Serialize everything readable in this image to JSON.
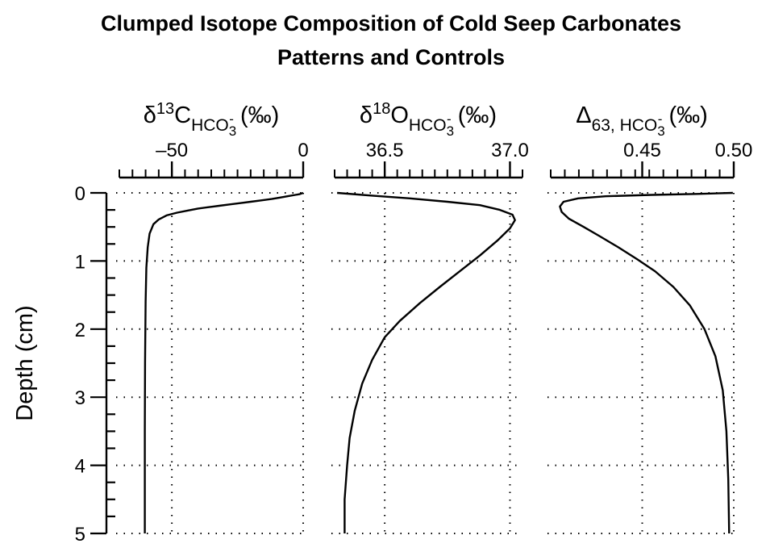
{
  "title_line1": "Clumped Isotope Composition of Cold Seep Carbonates",
  "title_line2": "Patterns and Controls",
  "y_axis_label": "Depth (cm)",
  "chart_data": [
    {
      "type": "line",
      "panel": "d13C",
      "xlabel_parts": {
        "symbol": "δ",
        "sup": "13",
        "base": "C",
        "sub": "HCO",
        "sub2": "3",
        "subsup": "-",
        "unit": "(‰)"
      },
      "xlim": [
        -70,
        0
      ],
      "xticks": [
        {
          "value": -50,
          "label": "–50"
        },
        {
          "value": 0,
          "label": "0"
        }
      ],
      "minor_step": 5,
      "ylim": [
        0,
        5
      ],
      "yticks": [
        0,
        1,
        2,
        3,
        4,
        5
      ],
      "grid": "dotted",
      "series": [
        {
          "x": [
            0,
            -1.5,
            -3,
            -6,
            -9,
            -12,
            -16,
            -20,
            -24,
            -28,
            -32,
            -36,
            -40,
            -44,
            -48,
            -52,
            -55,
            -57,
            -58.5,
            -59.2,
            -59.7,
            -60,
            -60.2,
            -60.3,
            -60.3
          ],
          "y": [
            0,
            0.02,
            0.03,
            0.05,
            0.07,
            0.09,
            0.11,
            0.13,
            0.15,
            0.17,
            0.19,
            0.21,
            0.23,
            0.26,
            0.29,
            0.33,
            0.39,
            0.46,
            0.6,
            0.8,
            1.1,
            1.6,
            2.5,
            3.5,
            5.0
          ]
        }
      ]
    },
    {
      "type": "line",
      "panel": "d18O",
      "xlabel_parts": {
        "symbol": "δ",
        "sup": "18",
        "base": "O",
        "sub": "HCO",
        "sub2": "3",
        "subsup": "-",
        "unit": "(‰)"
      },
      "xlim": [
        36.3,
        37.05
      ],
      "xticks": [
        {
          "value": 36.5,
          "label": "36.5"
        },
        {
          "value": 37.0,
          "label": "37.0"
        }
      ],
      "minor_step": 0.05,
      "ylim": [
        0,
        5
      ],
      "yticks": [
        0,
        1,
        2,
        3,
        4,
        5
      ],
      "grid": "dotted",
      "series": [
        {
          "x": [
            36.31,
            36.45,
            36.6,
            36.75,
            36.88,
            36.96,
            37.01,
            37.02,
            37.0,
            36.95,
            36.88,
            36.8,
            36.72,
            36.64,
            36.56,
            36.5,
            36.45,
            36.41,
            36.38,
            36.36,
            36.35,
            36.34,
            36.34
          ],
          "y": [
            0,
            0.04,
            0.08,
            0.13,
            0.18,
            0.25,
            0.32,
            0.4,
            0.52,
            0.7,
            0.92,
            1.15,
            1.38,
            1.62,
            1.88,
            2.12,
            2.45,
            2.8,
            3.2,
            3.6,
            4.0,
            4.5,
            5.0
          ]
        }
      ]
    },
    {
      "type": "line",
      "panel": "D63",
      "xlabel_parts": {
        "symbol": "Δ",
        "sub_prefix": "63, ",
        "sub": "HCO",
        "sub2": "3",
        "subsup": "-",
        "unit": "(‰)"
      },
      "xlim": [
        0.4,
        0.5
      ],
      "xticks": [
        {
          "value": 0.45,
          "label": "0.45"
        },
        {
          "value": 0.5,
          "label": "0.50"
        }
      ],
      "minor_step": 0.0075,
      "ylim": [
        0,
        5
      ],
      "yticks": [
        0,
        1,
        2,
        3,
        4,
        5
      ],
      "grid": "dotted",
      "series": [
        {
          "x": [
            0.4995,
            0.48,
            0.455,
            0.43,
            0.415,
            0.407,
            0.405,
            0.406,
            0.41,
            0.418,
            0.427,
            0.437,
            0.447,
            0.457,
            0.467,
            0.476,
            0.484,
            0.49,
            0.494,
            0.496,
            0.497,
            0.4975
          ],
          "y": [
            0,
            0.015,
            0.03,
            0.05,
            0.08,
            0.13,
            0.2,
            0.28,
            0.38,
            0.5,
            0.64,
            0.8,
            0.97,
            1.15,
            1.38,
            1.65,
            2.0,
            2.4,
            2.9,
            3.5,
            4.2,
            5.0
          ]
        }
      ]
    }
  ]
}
